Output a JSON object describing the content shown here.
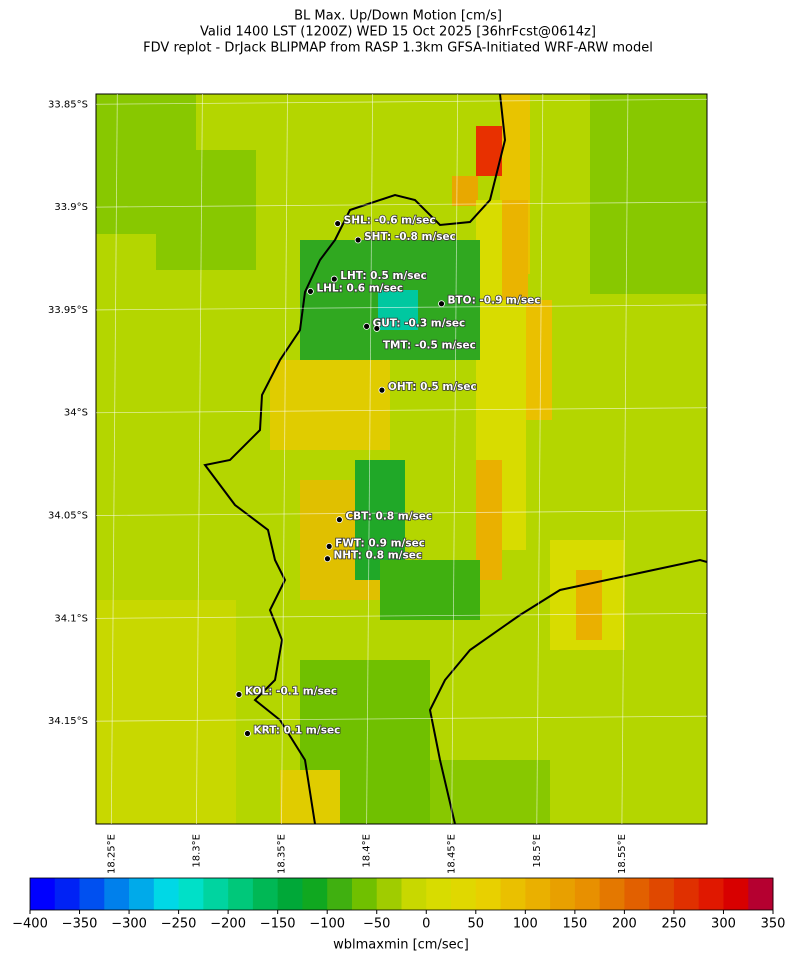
{
  "chart_data": {
    "type": "map",
    "title": [
      "BL Max. Up/Down Motion [cm/s]",
      "Valid 1400 LST (1200Z) WED 15 Oct 2025 [36hrFcst@0614z]",
      "FDV replot - DrJack BLIPMAP from RASP 1.3km GFSA-Initiated WRF-ARW model"
    ],
    "xlim": [
      18.241,
      18.6
    ],
    "ylim": [
      -34.2,
      -33.845
    ],
    "xticks": [
      {
        "value": 18.25,
        "label": "18.25°E"
      },
      {
        "value": 18.3,
        "label": "18.3°E"
      },
      {
        "value": 18.35,
        "label": "18.35°E"
      },
      {
        "value": 18.4,
        "label": "18.4°E"
      },
      {
        "value": 18.45,
        "label": "18.45°E"
      },
      {
        "value": 18.5,
        "label": "18.5°E"
      },
      {
        "value": 18.55,
        "label": "18.55°E"
      }
    ],
    "yticks": [
      {
        "value": -33.85,
        "label": "33.85°S"
      },
      {
        "value": -33.9,
        "label": "33.9°S"
      },
      {
        "value": -33.95,
        "label": "33.95°S"
      },
      {
        "value": -34.0,
        "label": "34°S"
      },
      {
        "value": -34.05,
        "label": "34.05°S"
      },
      {
        "value": -34.1,
        "label": "34.1°S"
      },
      {
        "value": -34.15,
        "label": "34.15°S"
      }
    ],
    "stations": [
      {
        "label": "SHL: -0.6 m/sec",
        "lon": 18.383,
        "lat": -33.908
      },
      {
        "label": "SHT: -0.8 m/sec",
        "lon": 18.395,
        "lat": -33.916
      },
      {
        "label": "LHT: 0.5 m/sec",
        "lon": 18.381,
        "lat": -33.935
      },
      {
        "label": "LHL: 0.6 m/sec",
        "lon": 18.367,
        "lat": -33.941
      },
      {
        "label": "BTO: -0.9 m/sec",
        "lon": 18.444,
        "lat": -33.947
      },
      {
        "label": "GUT: -0.3 m/sec",
        "lon": 18.4,
        "lat": -33.958
      },
      {
        "label": "TMT: -0.5 m/sec",
        "lon": 18.406,
        "lat": -33.959
      },
      {
        "label": "OHT: 0.5 m/sec",
        "lon": 18.409,
        "lat": -33.989
      },
      {
        "label": "CBT: 0.8 m/sec",
        "lon": 18.384,
        "lat": -34.052
      },
      {
        "label": "FWT: 0.9 m/sec",
        "lon": 18.378,
        "lat": -34.065
      },
      {
        "label": "NHT: 0.8 m/sec",
        "lon": 18.377,
        "lat": -34.071
      },
      {
        "label": "KOL: -0.1 m/sec",
        "lon": 18.325,
        "lat": -34.137
      },
      {
        "label": "KRT: 0.1 m/sec",
        "lon": 18.33,
        "lat": -34.156
      }
    ],
    "colorbar": {
      "label": "wblmaxmin [cm/sec]",
      "clim": [
        -400,
        350
      ],
      "colors": [
        "#0000ff",
        "#0022f5",
        "#0050f0",
        "#0080ec",
        "#00aaea",
        "#00d8e6",
        "#00e0c8",
        "#00d4a0",
        "#00c87a",
        "#00b855",
        "#00a838",
        "#10a820",
        "#40b010",
        "#70c000",
        "#a0cc00",
        "#c8d800",
        "#d8dc00",
        "#e0d800",
        "#e8d000",
        "#eac000",
        "#eab000",
        "#e8a000",
        "#e89000",
        "#e47800",
        "#e26000",
        "#e04800",
        "#e03000",
        "#e01800",
        "#d80000",
        "#b50030"
      ],
      "ticks": [
        {
          "value": -400,
          "label": "−400"
        },
        {
          "value": -350,
          "label": "−350"
        },
        {
          "value": -300,
          "label": "−300"
        },
        {
          "value": -250,
          "label": "−250"
        },
        {
          "value": -200,
          "label": "−200"
        },
        {
          "value": -150,
          "label": "−150"
        },
        {
          "value": -100,
          "label": "−100"
        },
        {
          "value": -50,
          "label": "−50"
        },
        0,
        50,
        100,
        150,
        200,
        250,
        300,
        350
      ]
    }
  }
}
